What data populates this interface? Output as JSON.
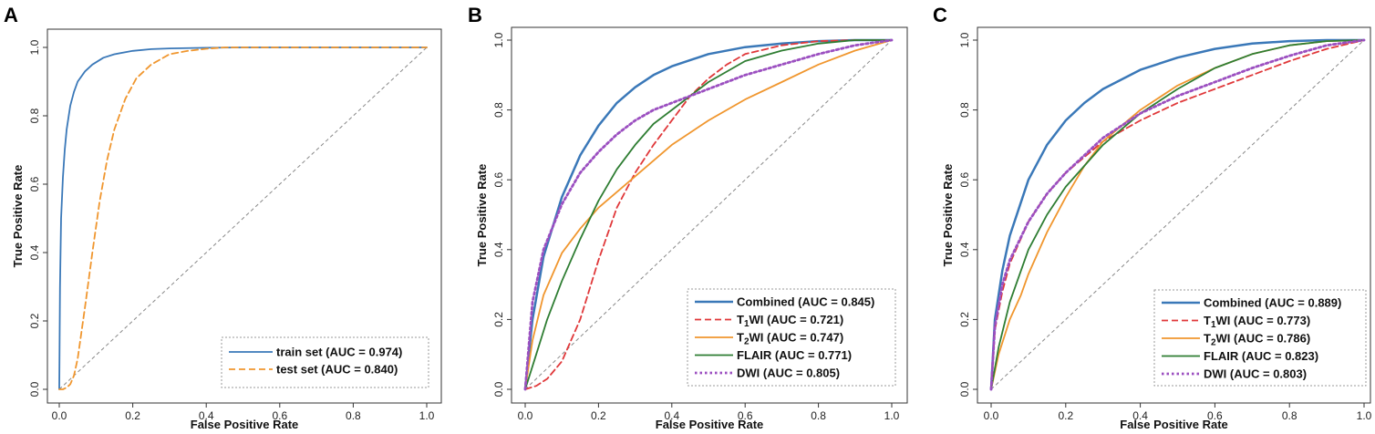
{
  "chart_data": [
    {
      "type": "line",
      "panel": "A",
      "xlabel": "False Positive Rate",
      "ylabel": "True Positive Rate",
      "xlim": [
        0,
        1
      ],
      "ylim": [
        0,
        1
      ],
      "xticks": [
        "0.0",
        "0.2",
        "0.4",
        "0.6",
        "0.8",
        "1.0"
      ],
      "yticks": [
        "0.0",
        "0.2",
        "0.4",
        "0.6",
        "0.8",
        "1.0"
      ],
      "legend_position": "bottom-right",
      "reference_line": "diagonal",
      "series": [
        {
          "name": "train set",
          "label": "train set (AUC = 0.974)",
          "auc": 0.974,
          "color": "#3a78b8",
          "dash": "solid",
          "x": [
            0,
            0.002,
            0.005,
            0.01,
            0.015,
            0.02,
            0.03,
            0.04,
            0.05,
            0.07,
            0.09,
            0.12,
            0.15,
            0.2,
            0.25,
            0.3,
            0.4,
            0.5,
            0.7,
            1.0
          ],
          "y": [
            0,
            0.3,
            0.5,
            0.62,
            0.7,
            0.76,
            0.83,
            0.87,
            0.9,
            0.93,
            0.95,
            0.97,
            0.98,
            0.99,
            0.995,
            0.997,
            0.999,
            1.0,
            1.0,
            1.0
          ]
        },
        {
          "name": "test set",
          "label": "test set (AUC = 0.840)",
          "auc": 0.84,
          "color": "#f0962e",
          "dash": "dashed",
          "x": [
            0,
            0.01,
            0.02,
            0.03,
            0.04,
            0.05,
            0.07,
            0.09,
            0.11,
            0.13,
            0.15,
            0.18,
            0.21,
            0.25,
            0.3,
            0.35,
            0.4,
            0.45,
            0.5,
            0.7,
            1.0
          ],
          "y": [
            0,
            0,
            0.005,
            0.015,
            0.04,
            0.09,
            0.24,
            0.4,
            0.55,
            0.67,
            0.76,
            0.85,
            0.91,
            0.95,
            0.98,
            0.99,
            0.996,
            1.0,
            1.0,
            1.0,
            1.0
          ]
        }
      ]
    },
    {
      "type": "line",
      "panel": "B",
      "xlabel": "False Positive Rate",
      "ylabel": "True Positive Rate",
      "xlim": [
        0,
        1
      ],
      "ylim": [
        0,
        1
      ],
      "xticks": [
        "0.0",
        "0.2",
        "0.4",
        "0.6",
        "0.8",
        "1.0"
      ],
      "yticks": [
        "0.0",
        "0.2",
        "0.4",
        "0.6",
        "0.8",
        "1.0"
      ],
      "legend_position": "bottom-right",
      "reference_line": "diagonal",
      "series": [
        {
          "name": "Combined",
          "label": "Combined (AUC = 0.845)",
          "auc": 0.845,
          "color": "#3a78b8",
          "dash": "solid",
          "width": 2.5,
          "x": [
            0,
            0.02,
            0.05,
            0.1,
            0.15,
            0.2,
            0.25,
            0.3,
            0.35,
            0.4,
            0.5,
            0.6,
            0.7,
            0.8,
            0.9,
            1.0
          ],
          "y": [
            0,
            0.2,
            0.38,
            0.55,
            0.67,
            0.755,
            0.82,
            0.865,
            0.9,
            0.925,
            0.96,
            0.98,
            0.99,
            0.997,
            1.0,
            1.0
          ]
        },
        {
          "name": "T1WI",
          "label": "T1WI (AUC = 0.721)",
          "sub_digit": "1",
          "auc": 0.721,
          "color": "#e0383a",
          "dash": "dashed",
          "x": [
            0,
            0.03,
            0.06,
            0.1,
            0.15,
            0.2,
            0.25,
            0.3,
            0.35,
            0.4,
            0.45,
            0.5,
            0.55,
            0.6,
            0.7,
            0.8,
            0.9,
            1.0
          ],
          "y": [
            0,
            0.01,
            0.03,
            0.08,
            0.2,
            0.37,
            0.52,
            0.62,
            0.7,
            0.77,
            0.84,
            0.89,
            0.93,
            0.96,
            0.985,
            0.997,
            1.0,
            1.0
          ]
        },
        {
          "name": "T2WI",
          "label": "T2WI (AUC = 0.747)",
          "sub_digit": "2",
          "auc": 0.747,
          "color": "#f0962e",
          "dash": "solid",
          "x": [
            0,
            0.02,
            0.05,
            0.1,
            0.15,
            0.2,
            0.3,
            0.4,
            0.5,
            0.6,
            0.7,
            0.8,
            0.9,
            1.0
          ],
          "y": [
            0,
            0.14,
            0.27,
            0.39,
            0.46,
            0.52,
            0.61,
            0.7,
            0.77,
            0.83,
            0.88,
            0.93,
            0.97,
            1.0
          ]
        },
        {
          "name": "FLAIR",
          "label": "FLAIR (AUC = 0.771)",
          "auc": 0.771,
          "color": "#2e7d32",
          "dash": "solid",
          "x": [
            0,
            0.03,
            0.06,
            0.1,
            0.15,
            0.2,
            0.25,
            0.3,
            0.35,
            0.4,
            0.5,
            0.6,
            0.7,
            0.8,
            0.9,
            1.0
          ],
          "y": [
            0,
            0.1,
            0.2,
            0.31,
            0.43,
            0.54,
            0.63,
            0.7,
            0.76,
            0.8,
            0.88,
            0.94,
            0.97,
            0.99,
            1.0,
            1.0
          ]
        },
        {
          "name": "DWI",
          "label": "DWI (AUC = 0.805)",
          "auc": 0.805,
          "color": "#9b4fc0",
          "dash": "dotted",
          "width": 2.8,
          "x": [
            0,
            0.02,
            0.05,
            0.1,
            0.15,
            0.2,
            0.25,
            0.3,
            0.35,
            0.4,
            0.5,
            0.6,
            0.7,
            0.8,
            0.9,
            1.0
          ],
          "y": [
            0,
            0.25,
            0.4,
            0.53,
            0.62,
            0.68,
            0.73,
            0.77,
            0.8,
            0.82,
            0.86,
            0.9,
            0.93,
            0.96,
            0.985,
            1.0
          ]
        }
      ]
    },
    {
      "type": "line",
      "panel": "C",
      "xlabel": "False Positive Rate",
      "ylabel": "True Positive Rate",
      "xlim": [
        0,
        1
      ],
      "ylim": [
        0,
        1
      ],
      "xticks": [
        "0.0",
        "0.2",
        "0.4",
        "0.6",
        "0.8",
        "1.0"
      ],
      "yticks": [
        "0.0",
        "0.2",
        "0.4",
        "0.6",
        "0.8",
        "1.0"
      ],
      "legend_position": "bottom-right",
      "reference_line": "diagonal",
      "series": [
        {
          "name": "Combined",
          "label": "Combined (AUC = 0.889)",
          "auc": 0.889,
          "color": "#3a78b8",
          "dash": "solid",
          "width": 2.5,
          "x": [
            0,
            0.01,
            0.03,
            0.05,
            0.1,
            0.15,
            0.2,
            0.25,
            0.3,
            0.4,
            0.5,
            0.6,
            0.7,
            0.8,
            0.9,
            1.0
          ],
          "y": [
            0,
            0.2,
            0.34,
            0.44,
            0.6,
            0.7,
            0.77,
            0.82,
            0.86,
            0.915,
            0.95,
            0.975,
            0.99,
            0.997,
            1.0,
            1.0
          ]
        },
        {
          "name": "T1WI",
          "label": "T1WI (AUC = 0.773)",
          "sub_digit": "1",
          "auc": 0.773,
          "color": "#e0383a",
          "dash": "dashed",
          "x": [
            0,
            0.01,
            0.03,
            0.05,
            0.1,
            0.15,
            0.2,
            0.3,
            0.4,
            0.5,
            0.6,
            0.7,
            0.8,
            0.9,
            1.0
          ],
          "y": [
            0,
            0.17,
            0.28,
            0.36,
            0.48,
            0.56,
            0.62,
            0.71,
            0.77,
            0.82,
            0.86,
            0.9,
            0.94,
            0.975,
            1.0
          ]
        },
        {
          "name": "T2WI",
          "label": "T2WI (AUC = 0.786)",
          "sub_digit": "2",
          "auc": 0.786,
          "color": "#f0962e",
          "dash": "solid",
          "x": [
            0,
            0.02,
            0.05,
            0.08,
            0.1,
            0.15,
            0.2,
            0.25,
            0.3,
            0.4,
            0.5,
            0.6,
            0.7,
            0.8,
            0.9,
            1.0
          ],
          "y": [
            0,
            0.1,
            0.2,
            0.27,
            0.33,
            0.45,
            0.55,
            0.64,
            0.71,
            0.8,
            0.87,
            0.92,
            0.96,
            0.985,
            0.997,
            1.0
          ]
        },
        {
          "name": "FLAIR",
          "label": "FLAIR (AUC = 0.823)",
          "auc": 0.823,
          "color": "#2e7d32",
          "dash": "solid",
          "x": [
            0,
            0.02,
            0.05,
            0.1,
            0.15,
            0.2,
            0.3,
            0.4,
            0.5,
            0.6,
            0.7,
            0.8,
            0.9,
            1.0
          ],
          "y": [
            0,
            0.12,
            0.25,
            0.4,
            0.5,
            0.58,
            0.7,
            0.79,
            0.86,
            0.92,
            0.96,
            0.985,
            0.997,
            1.0
          ]
        },
        {
          "name": "DWI",
          "label": "DWI (AUC = 0.803)",
          "auc": 0.803,
          "color": "#9b4fc0",
          "dash": "dotted",
          "width": 2.8,
          "x": [
            0,
            0.01,
            0.03,
            0.05,
            0.1,
            0.15,
            0.2,
            0.3,
            0.4,
            0.5,
            0.6,
            0.7,
            0.8,
            0.9,
            1.0
          ],
          "y": [
            0,
            0.18,
            0.3,
            0.37,
            0.48,
            0.56,
            0.62,
            0.72,
            0.79,
            0.84,
            0.88,
            0.92,
            0.955,
            0.985,
            1.0
          ]
        }
      ]
    }
  ]
}
